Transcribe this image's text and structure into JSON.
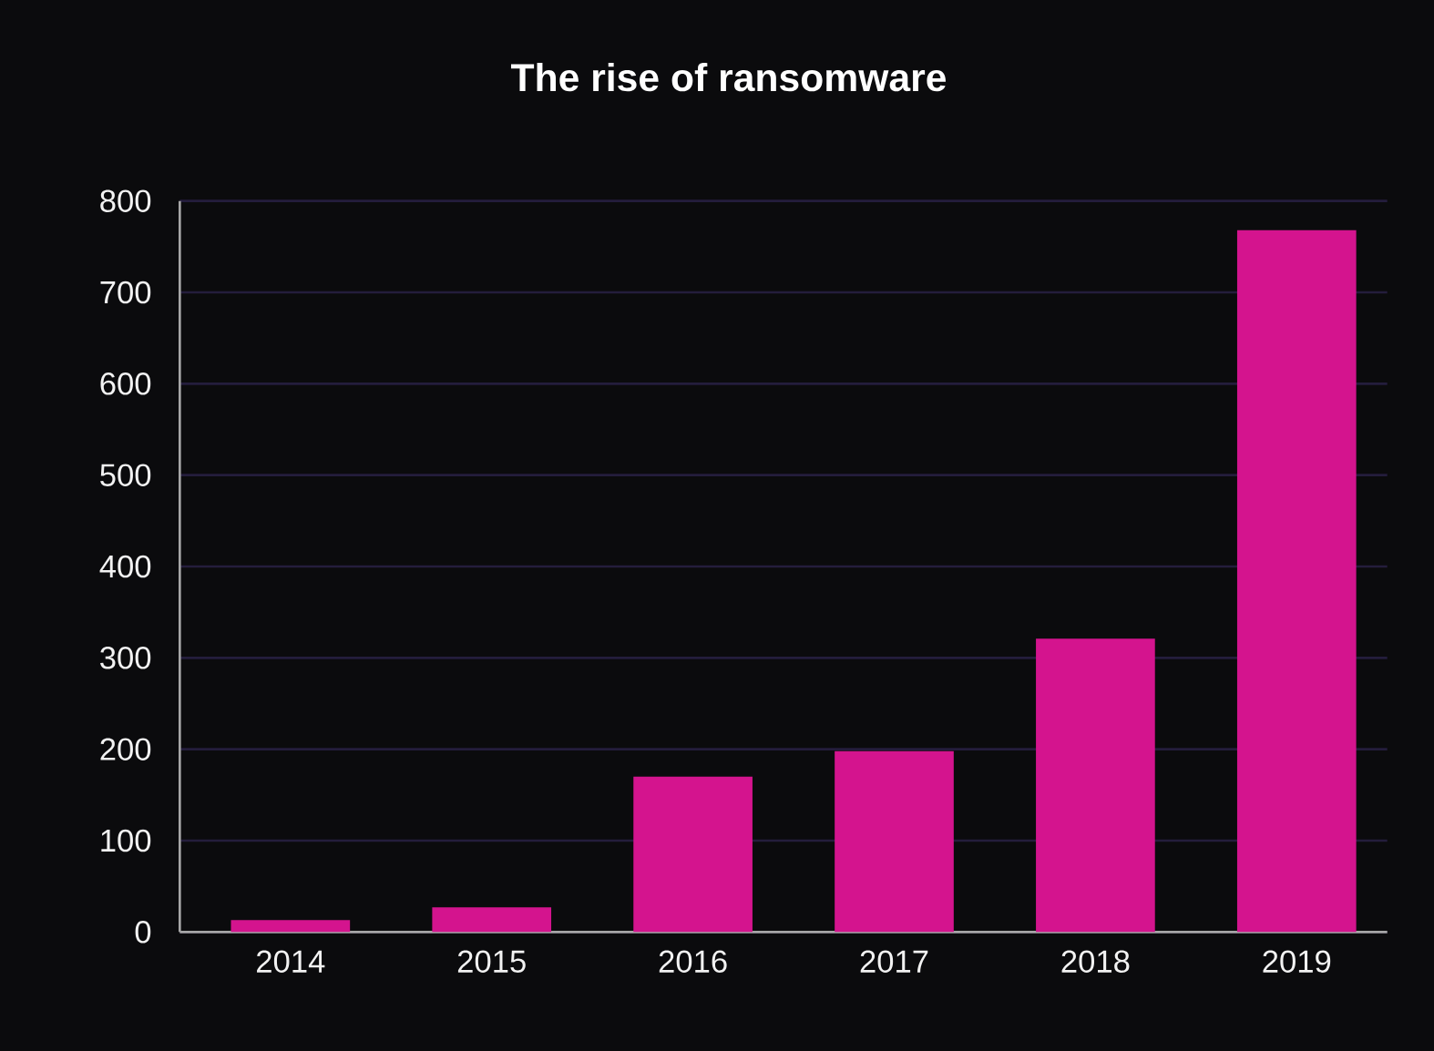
{
  "chart_data": {
    "type": "bar",
    "title": "The rise of ransomware",
    "categories": [
      "2014",
      "2015",
      "2016",
      "2017",
      "2018",
      "2019"
    ],
    "values": [
      13,
      27,
      170,
      198,
      321,
      768
    ],
    "color": "#d4148e",
    "ylim": [
      0,
      800
    ],
    "yticks": [
      0,
      100,
      200,
      300,
      400,
      500,
      600,
      700,
      800
    ],
    "grid": "y"
  }
}
